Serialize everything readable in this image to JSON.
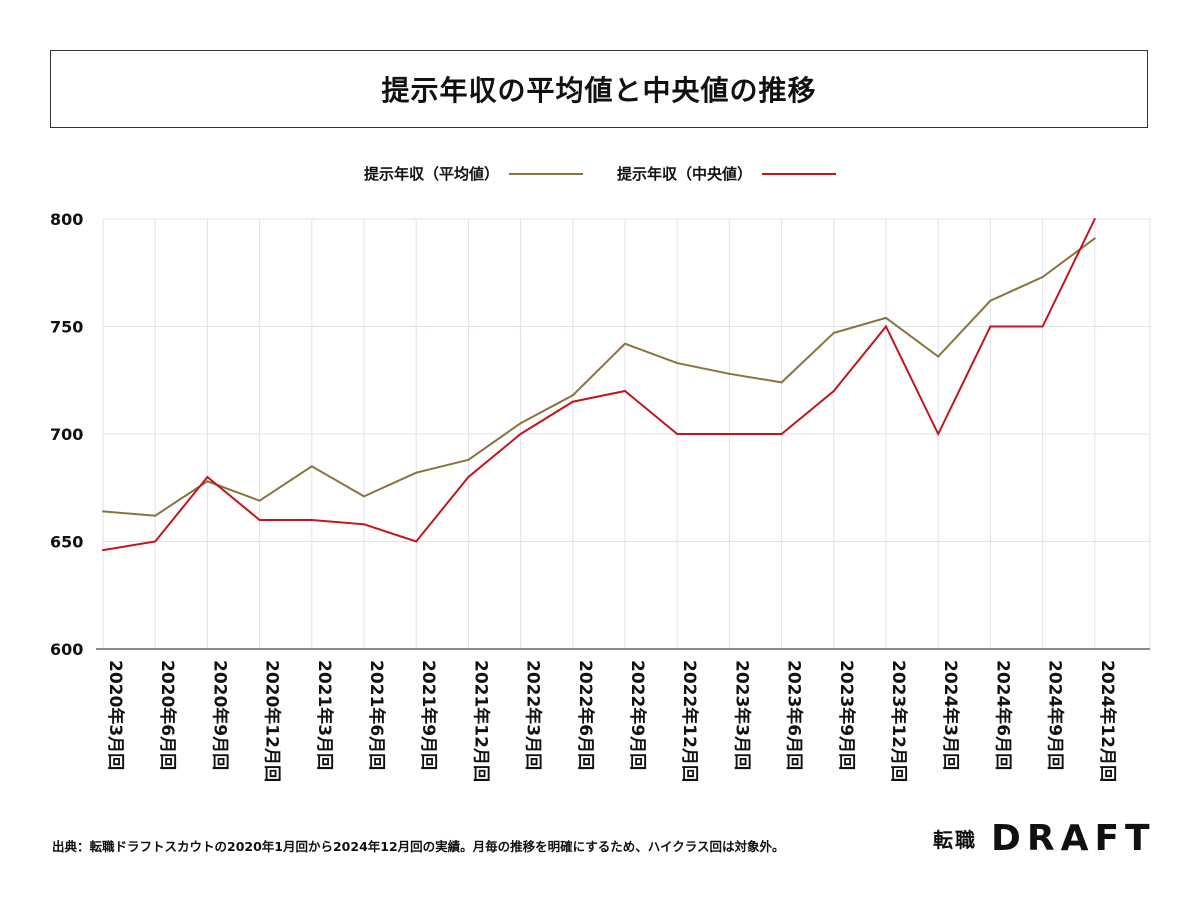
{
  "title": "提示年収の平均値と中央値の推移",
  "legend": {
    "mean_label": "提示年収（平均値）",
    "median_label": "提示年収（中央値）"
  },
  "colors": {
    "mean": "#8B7340",
    "median": "#C0161C",
    "grid": "#E1E1EC",
    "axis": "#666666"
  },
  "chart_data": {
    "type": "line",
    "title": "提示年収の平均値と中央値の推移",
    "xlabel": "",
    "ylabel": "",
    "ylim": [
      600,
      800
    ],
    "yticks": [
      600,
      650,
      700,
      750,
      800
    ],
    "categories": [
      "2020年3月回",
      "2020年6月回",
      "2020年9月回",
      "2020年12月回",
      "2021年3月回",
      "2021年6月回",
      "2021年9月回",
      "2021年12月回",
      "2022年3月回",
      "2022年6月回",
      "2022年9月回",
      "2022年12月回",
      "2023年3月回",
      "2023年6月回",
      "2023年9月回",
      "2023年12月回",
      "2024年3月回",
      "2024年6月回",
      "2024年9月回",
      "2024年12月回"
    ],
    "series": [
      {
        "name": "提示年収（平均値）",
        "values": [
          664,
          662,
          678,
          669,
          685,
          671,
          682,
          688,
          705,
          718,
          742,
          733,
          728,
          724,
          747,
          754,
          736,
          762,
          773,
          791
        ]
      },
      {
        "name": "提示年収（中央値）",
        "values": [
          646,
          650,
          680,
          660,
          660,
          658,
          650,
          680,
          700,
          715,
          720,
          700,
          700,
          700,
          720,
          750,
          700,
          750,
          750,
          800
        ]
      }
    ],
    "legend_position": "top-center",
    "grid": true
  },
  "footer": {
    "note": "出典：転職ドラフトスカウトの2020年1月回から2024年12月回の実績。月毎の推移を明確にするため、ハイクラス回は対象外。"
  },
  "logo": {
    "jp": "転職",
    "en": "DRAFT"
  }
}
